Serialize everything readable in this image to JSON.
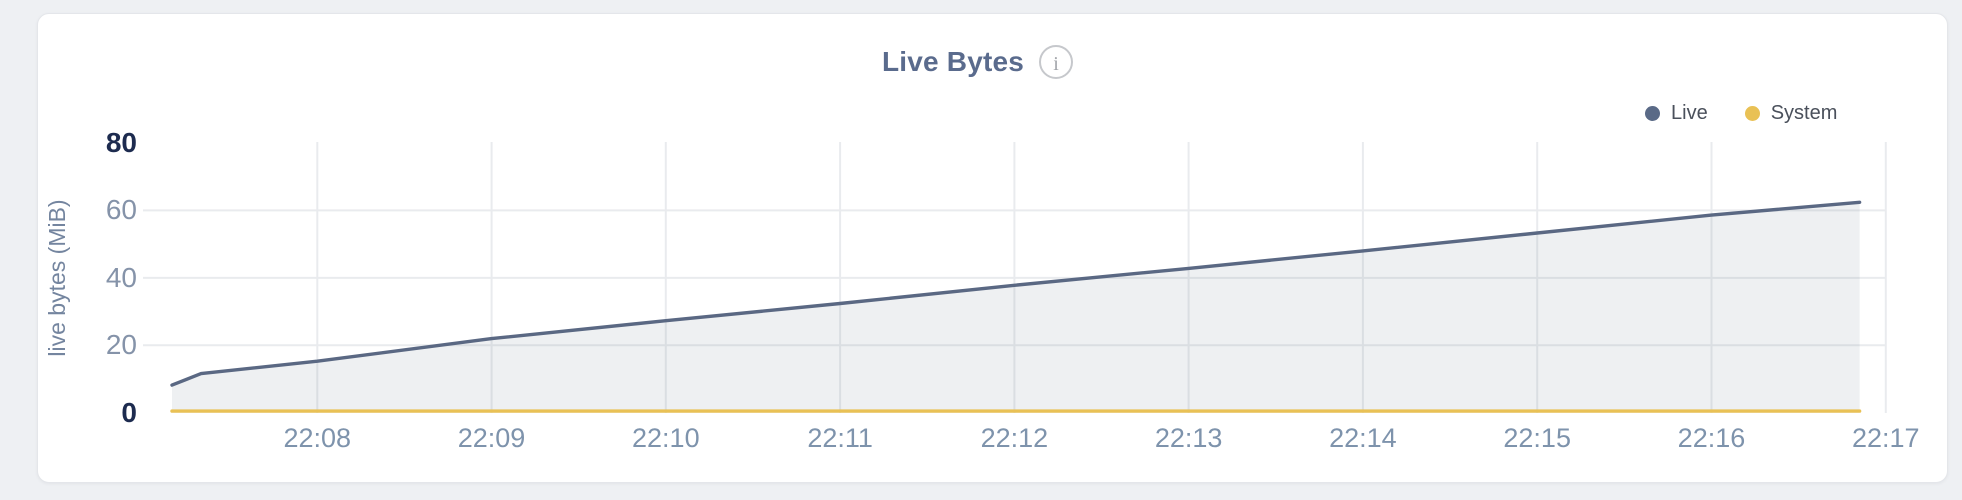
{
  "page": {
    "background": "#eef0f3"
  },
  "card": {
    "background": "#ffffff",
    "border_color": "#e4e6ea"
  },
  "header": {
    "title": "Live Bytes",
    "info_icon": "circled-i",
    "info_glyph": "i"
  },
  "legend": {
    "position": "top-right",
    "items": [
      {
        "label": "Live",
        "color": "#5a6a87"
      },
      {
        "label": "System",
        "color": "#e9c155"
      }
    ]
  },
  "chart_data": {
    "type": "area",
    "title": "Live Bytes",
    "xlabel": "",
    "ylabel": "live bytes (MiB)",
    "ylim": [
      0,
      80
    ],
    "yticks": [
      0,
      20,
      40,
      60,
      80
    ],
    "ytick_emphasized": [
      0,
      80
    ],
    "x_range": [
      "22:07:00",
      "22:17:00"
    ],
    "xticks": [
      "22:08",
      "22:09",
      "22:10",
      "22:11",
      "22:12",
      "22:13",
      "22:14",
      "22:15",
      "22:16",
      "22:17"
    ],
    "grid": true,
    "legend_position": "top-right",
    "series": [
      {
        "name": "Live",
        "color": "#5a6883",
        "fill": "rgba(90,104,131,0.10)",
        "points": [
          [
            "22:07:10",
            8.2
          ],
          [
            "22:07:20",
            11.6
          ],
          [
            "22:08:00",
            15.3
          ],
          [
            "22:09:00",
            22.0
          ],
          [
            "22:10:00",
            27.3
          ],
          [
            "22:11:00",
            32.4
          ],
          [
            "22:12:00",
            37.8
          ],
          [
            "22:13:00",
            42.8
          ],
          [
            "22:14:00",
            48.0
          ],
          [
            "22:15:00",
            53.3
          ],
          [
            "22:16:00",
            58.6
          ],
          [
            "22:16:51",
            62.4
          ]
        ]
      },
      {
        "name": "System",
        "color": "#e9c155",
        "fill": null,
        "points": [
          [
            "22:07:10",
            0.5
          ],
          [
            "22:16:51",
            0.5
          ]
        ]
      }
    ]
  }
}
